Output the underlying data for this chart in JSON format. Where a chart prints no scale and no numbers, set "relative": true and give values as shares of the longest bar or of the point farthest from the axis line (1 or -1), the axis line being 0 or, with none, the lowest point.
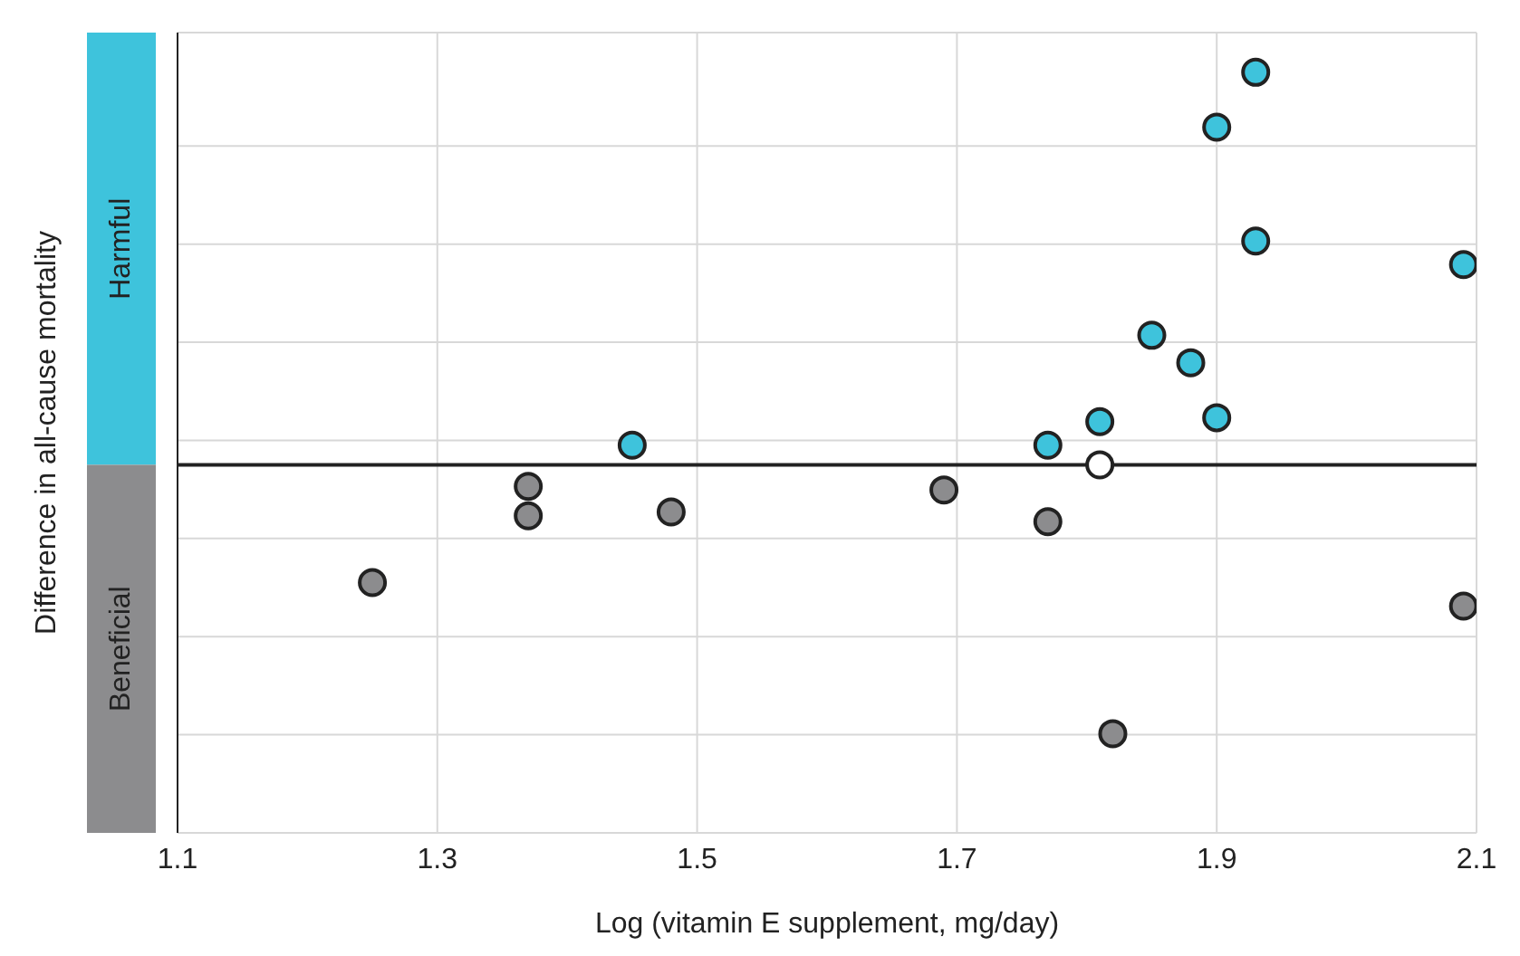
{
  "chart_data": {
    "type": "scatter",
    "relative": true,
    "xlabel": "Log (vitamin E supplement, mg/day)",
    "ylabel": "Difference in all-cause mortality",
    "annotations": [
      "Harmful",
      "Beneficial"
    ],
    "xlim": [
      1.1,
      2.1
    ],
    "xticks": [
      1.1,
      1.3,
      1.5,
      1.7,
      1.9,
      2.1
    ],
    "grid": true,
    "marker": "circle",
    "series": [
      {
        "color": "#3ec3dc",
        "x": [
          1.45,
          1.77,
          1.81,
          1.85,
          1.88,
          1.9,
          1.9,
          1.93,
          1.93,
          2.09
        ],
        "values": [
          0.05,
          0.05,
          0.11,
          0.33,
          0.26,
          0.86,
          0.12,
          1.0,
          0.57,
          0.51
        ]
      },
      {
        "color": "#8c8c8e",
        "x": [
          1.25,
          1.37,
          1.37,
          1.48,
          1.69,
          1.77,
          1.82,
          2.09
        ],
        "values": [
          -0.3,
          -0.055,
          -0.13,
          -0.12,
          -0.064,
          -0.145,
          -0.685,
          -0.36
        ]
      },
      {
        "color": "#ffffff",
        "x": [
          1.81
        ],
        "values": [
          0
        ]
      }
    ]
  }
}
